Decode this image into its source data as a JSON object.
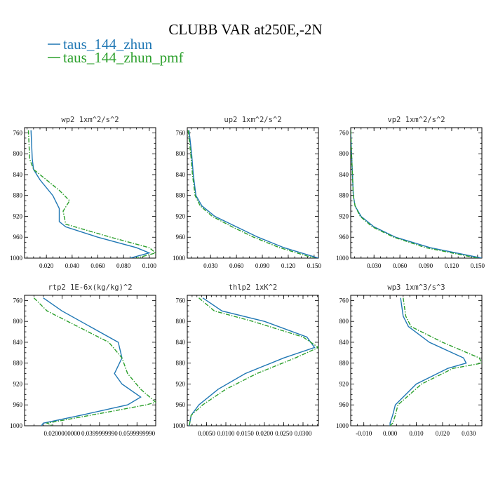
{
  "colors": {
    "zhun": "#1f77b4",
    "zhun_pmf": "#2ca02c"
  },
  "chart_data": {
    "type": "line",
    "title": "CLUBB VAR at250E,-2N",
    "legend": {
      "placement": "top-left",
      "entries": [
        {
          "label": "taus_144_zhun",
          "color": "#1f77b4"
        },
        {
          "label": "taus_144_zhun_pmf",
          "color": "#2ca02c"
        }
      ]
    },
    "y_axis": {
      "ylim": [
        1000,
        750
      ],
      "ticks": [
        760,
        800,
        840,
        880,
        920,
        960,
        1000
      ],
      "tick_labels": [
        "760",
        "800",
        "840",
        "880",
        "920",
        "960",
        "1000"
      ]
    },
    "panels": [
      {
        "title": "wp2  1xm^2/s^2",
        "xlim": [
          0.003,
          0.105
        ],
        "xticks": [
          0.02,
          0.04,
          0.06,
          0.08,
          0.1
        ],
        "xtick_labels": [
          "0.020",
          "0.040",
          "0.060",
          "0.080",
          "0.100"
        ],
        "series": [
          {
            "name": "taus_144_zhun",
            "y": [
              755,
              810,
              830,
              850,
              880,
              905,
              930,
              940,
              960,
              980,
              990,
              1000
            ],
            "x": [
              0.008,
              0.009,
              0.01,
              0.015,
              0.025,
              0.03,
              0.03,
              0.035,
              0.06,
              0.09,
              0.1,
              0.085
            ]
          },
          {
            "name": "taus_144_zhun_pmf",
            "y": [
              755,
              810,
              830,
              850,
              870,
              890,
              910,
              935,
              960,
              980,
              990,
              1000
            ],
            "x": [
              0.006,
              0.007,
              0.01,
              0.02,
              0.03,
              0.038,
              0.033,
              0.035,
              0.07,
              0.1,
              0.105,
              0.09
            ]
          }
        ]
      },
      {
        "title": "up2  1xm^2/s^2",
        "xlim": [
          0.003,
          0.155
        ],
        "xticks": [
          0.03,
          0.06,
          0.09,
          0.12,
          0.15
        ],
        "xtick_labels": [
          "0.030",
          "0.060",
          "0.090",
          "0.120",
          "0.150"
        ],
        "series": [
          {
            "name": "taus_144_zhun",
            "y": [
              755,
              800,
              840,
              880,
              900,
              920,
              940,
              960,
              980,
              1000
            ],
            "x": [
              0.005,
              0.008,
              0.01,
              0.013,
              0.02,
              0.035,
              0.06,
              0.085,
              0.115,
              0.155
            ]
          },
          {
            "name": "taus_144_zhun_pmf",
            "y": [
              755,
              800,
              840,
              880,
              900,
              920,
              940,
              960,
              980,
              1000
            ],
            "x": [
              0.004,
              0.007,
              0.009,
              0.012,
              0.018,
              0.032,
              0.055,
              0.08,
              0.11,
              0.15
            ]
          }
        ]
      },
      {
        "title": "vp2  1xm^2/s^2",
        "xlim": [
          0.003,
          0.155
        ],
        "xticks": [
          0.03,
          0.06,
          0.09,
          0.12,
          0.15
        ],
        "xtick_labels": [
          "0.030",
          "0.060",
          "0.090",
          "0.120",
          "0.150"
        ],
        "series": [
          {
            "name": "taus_144_zhun",
            "y": [
              755,
              800,
              840,
              880,
              900,
              920,
              940,
              960,
              980,
              1000
            ],
            "x": [
              0.003,
              0.004,
              0.005,
              0.006,
              0.008,
              0.015,
              0.03,
              0.055,
              0.095,
              0.155
            ]
          },
          {
            "name": "taus_144_zhun_pmf",
            "y": [
              755,
              800,
              840,
              880,
              900,
              920,
              940,
              960,
              980,
              1000
            ],
            "x": [
              0.003,
              0.004,
              0.005,
              0.006,
              0.008,
              0.014,
              0.028,
              0.053,
              0.09,
              0.15
            ]
          }
        ]
      },
      {
        "title": "rtp2  1E-6x(kg/kg)^2",
        "xlim": [
          0.0,
          0.07
        ],
        "xticks": [
          0.02,
          0.04,
          0.06
        ],
        "xtick_labels": [
          "0.0200000000",
          "0.0399999990",
          "0.0599999990"
        ],
        "series": [
          {
            "name": "taus_144_zhun",
            "y": [
              755,
              780,
              840,
              870,
              900,
              920,
              945,
              960,
              980,
              995,
              1000
            ],
            "x": [
              0.01,
              0.02,
              0.05,
              0.052,
              0.048,
              0.052,
              0.062,
              0.055,
              0.03,
              0.01,
              0.009
            ]
          },
          {
            "name": "taus_144_zhun_pmf",
            "y": [
              755,
              780,
              840,
              870,
              900,
              930,
              955,
              960,
              980,
              995,
              1000
            ],
            "x": [
              0.005,
              0.012,
              0.045,
              0.052,
              0.055,
              0.062,
              0.07,
              0.065,
              0.035,
              0.012,
              0.015
            ]
          }
        ]
      },
      {
        "title": "thlp2  1xK^2",
        "xlim": [
          0.0,
          0.034
        ],
        "xticks": [
          0.005,
          0.01,
          0.015,
          0.02,
          0.025,
          0.03
        ],
        "xtick_labels": [
          "0.0050",
          "0.0100",
          "0.0150",
          "0.0200",
          "0.0250",
          "0.0300"
        ],
        "series": [
          {
            "name": "taus_144_zhun",
            "y": [
              755,
              780,
              800,
              830,
              850,
              870,
              900,
              930,
              960,
              980,
              1000
            ],
            "x": [
              0.004,
              0.009,
              0.02,
              0.031,
              0.033,
              0.025,
              0.015,
              0.008,
              0.003,
              0.001,
              0.0005
            ]
          },
          {
            "name": "taus_144_zhun_pmf",
            "y": [
              755,
              780,
              800,
              830,
              850,
              870,
              900,
              930,
              960,
              980,
              1000
            ],
            "x": [
              0.003,
              0.007,
              0.017,
              0.03,
              0.034,
              0.028,
              0.018,
              0.01,
              0.004,
              0.001,
              0.0005
            ]
          }
        ]
      },
      {
        "title": "wp3  1xm^3/s^3",
        "xlim": [
          -0.015,
          0.035
        ],
        "xticks": [
          -0.01,
          0.0,
          0.01,
          0.02,
          0.03
        ],
        "xtick_labels": [
          "-0.010",
          "0.000",
          "0.010",
          "0.020",
          "0.030"
        ],
        "series": [
          {
            "name": "taus_144_zhun",
            "y": [
              755,
              790,
              810,
              840,
              870,
              880,
              890,
              920,
              960,
              980,
              995,
              1000
            ],
            "x": [
              0.004,
              0.005,
              0.007,
              0.015,
              0.028,
              0.029,
              0.022,
              0.01,
              0.002,
              0.001,
              0.0,
              0.0
            ]
          },
          {
            "name": "taus_144_zhun_pmf",
            "y": [
              755,
              790,
              810,
              840,
              870,
              880,
              890,
              920,
              960,
              980,
              995,
              1000
            ],
            "x": [
              0.005,
              0.006,
              0.008,
              0.02,
              0.034,
              0.035,
              0.024,
              0.012,
              0.003,
              0.002,
              0.001,
              0.0
            ]
          }
        ]
      }
    ]
  }
}
